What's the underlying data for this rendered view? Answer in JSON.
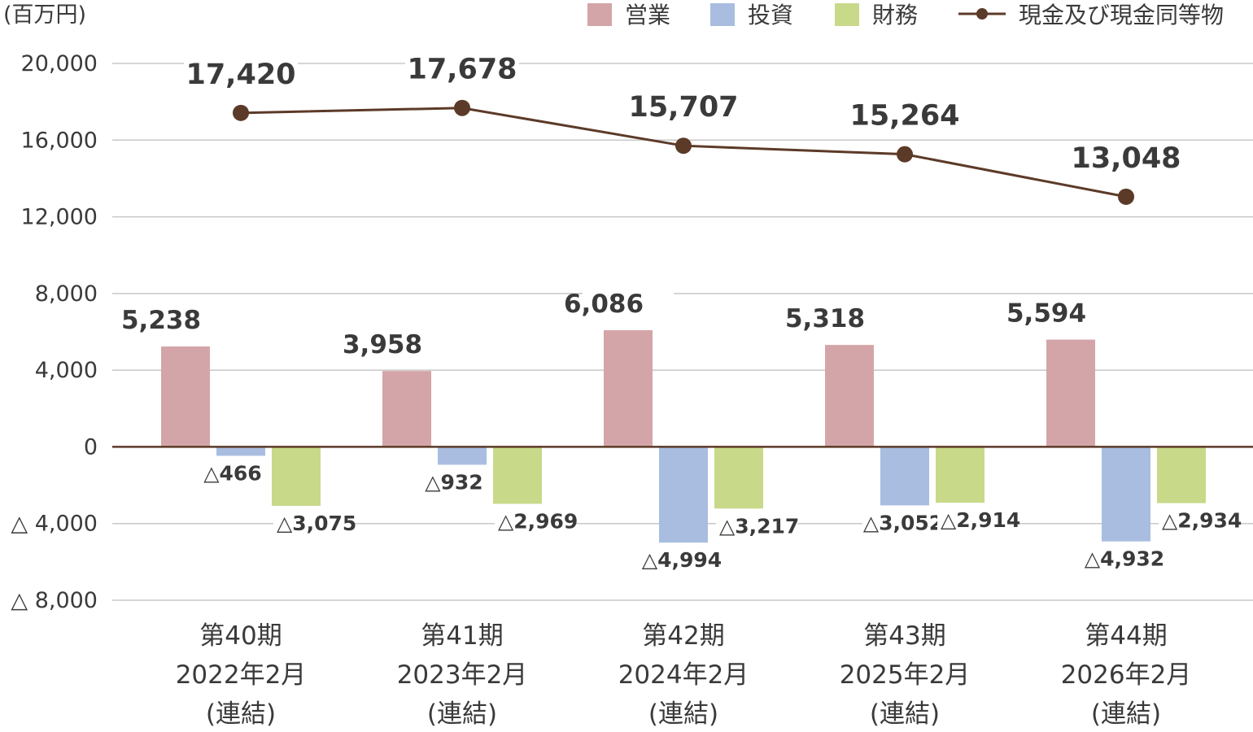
{
  "chart_data": {
    "type": "bar",
    "unit_label": "(百万円)",
    "categories": [
      [
        "第40期",
        "2022年2月",
        "(連結)"
      ],
      [
        "第41期",
        "2023年2月",
        "(連結)"
      ],
      [
        "第42期",
        "2024年2月",
        "(連結)"
      ],
      [
        "第43期",
        "2025年2月",
        "(連結)"
      ],
      [
        "第44期",
        "2026年2月",
        "(連結)"
      ]
    ],
    "series": [
      {
        "name": "営業",
        "type": "bar",
        "color": "#d4a5a8",
        "values": [
          5238,
          3958,
          6086,
          5318,
          5594
        ],
        "labels": [
          "5,238",
          "3,958",
          "6,086",
          "5,318",
          "5,594"
        ]
      },
      {
        "name": "投資",
        "type": "bar",
        "color": "#a8bde0",
        "values": [
          -466,
          -932,
          -4994,
          -3052,
          -4932
        ],
        "labels": [
          "△466",
          "△932",
          "△4,994",
          "△3,052",
          "△4,932"
        ]
      },
      {
        "name": "財務",
        "type": "bar",
        "color": "#c8d98a",
        "values": [
          -3075,
          -2969,
          -3217,
          -2914,
          -2934
        ],
        "labels": [
          "△3,075",
          "△2,969",
          "△3,217",
          "△2,914",
          "△2,934"
        ]
      },
      {
        "name": "現金及び現金同等物",
        "type": "line",
        "color": "#5c3a28",
        "values": [
          17420,
          17678,
          15707,
          15264,
          13048
        ],
        "labels": [
          "17,420",
          "17,678",
          "15,707",
          "15,264",
          "13,048"
        ]
      }
    ],
    "y_ticks": [
      20000,
      16000,
      12000,
      8000,
      4000,
      0,
      -4000,
      -8000
    ],
    "y_tick_labels": [
      "20,000",
      "16,000",
      "12,000",
      "8,000",
      "4,000",
      "0",
      "△ 4,000",
      "△ 8,000"
    ],
    "ylim": [
      -8000,
      20000
    ],
    "grid": true,
    "legend_position": "top-right",
    "gridline_color": "#c8c8c8",
    "zero_line_color": "#5c3a28"
  }
}
